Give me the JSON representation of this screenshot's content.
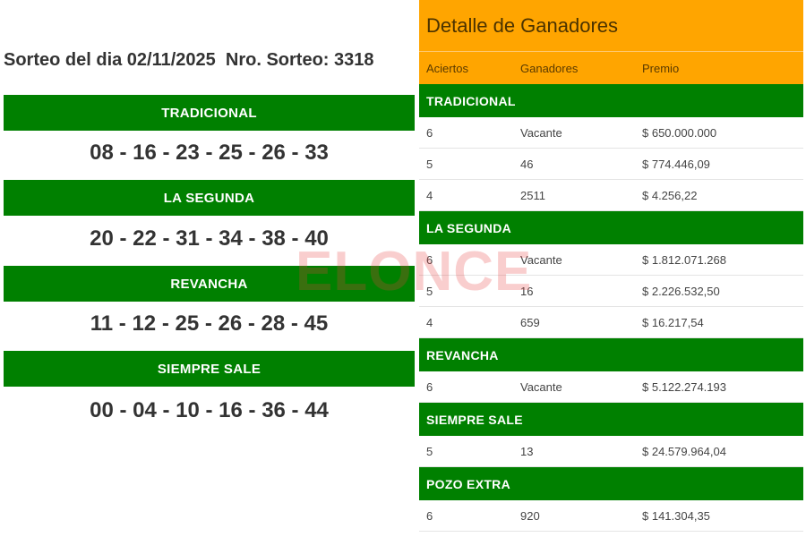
{
  "draw": {
    "title": "Sorteo del dia 02/11/2025  Nro. Sorteo: 3318",
    "games": [
      {
        "name": "TRADICIONAL",
        "numbers": "08 - 16 - 23 - 25 - 26 - 33"
      },
      {
        "name": "LA SEGUNDA",
        "numbers": "20 - 22 - 31 - 34 - 38 - 40"
      },
      {
        "name": "REVANCHA",
        "numbers": "11 - 12 - 25 - 26 - 28 - 45"
      },
      {
        "name": "SIEMPRE SALE",
        "numbers": "00 - 04 - 10 - 16 - 36 - 44"
      }
    ]
  },
  "winners": {
    "title": "Detalle de Ganadores",
    "columns": [
      "Aciertos",
      "Ganadores",
      "Premio"
    ],
    "sections": [
      {
        "name": "TRADICIONAL",
        "rows": [
          [
            "6",
            "Vacante",
            "$ 650.000.000"
          ],
          [
            "5",
            "46",
            "$ 774.446,09"
          ],
          [
            "4",
            "2511",
            "$ 4.256,22"
          ]
        ]
      },
      {
        "name": "LA SEGUNDA",
        "rows": [
          [
            "6",
            "Vacante",
            "$ 1.812.071.268"
          ],
          [
            "5",
            "16",
            "$ 2.226.532,50"
          ],
          [
            "4",
            "659",
            "$ 16.217,54"
          ]
        ]
      },
      {
        "name": "REVANCHA",
        "rows": [
          [
            "6",
            "Vacante",
            "$ 5.122.274.193"
          ]
        ]
      },
      {
        "name": "SIEMPRE SALE",
        "rows": [
          [
            "5",
            "13",
            "$ 24.579.964,04"
          ]
        ]
      },
      {
        "name": "POZO EXTRA",
        "rows": [
          [
            "6",
            "920",
            "$ 141.304,35"
          ]
        ]
      }
    ]
  },
  "watermark": "ELONCE",
  "colors": {
    "green": "#008000",
    "orange": "#ffa500"
  }
}
